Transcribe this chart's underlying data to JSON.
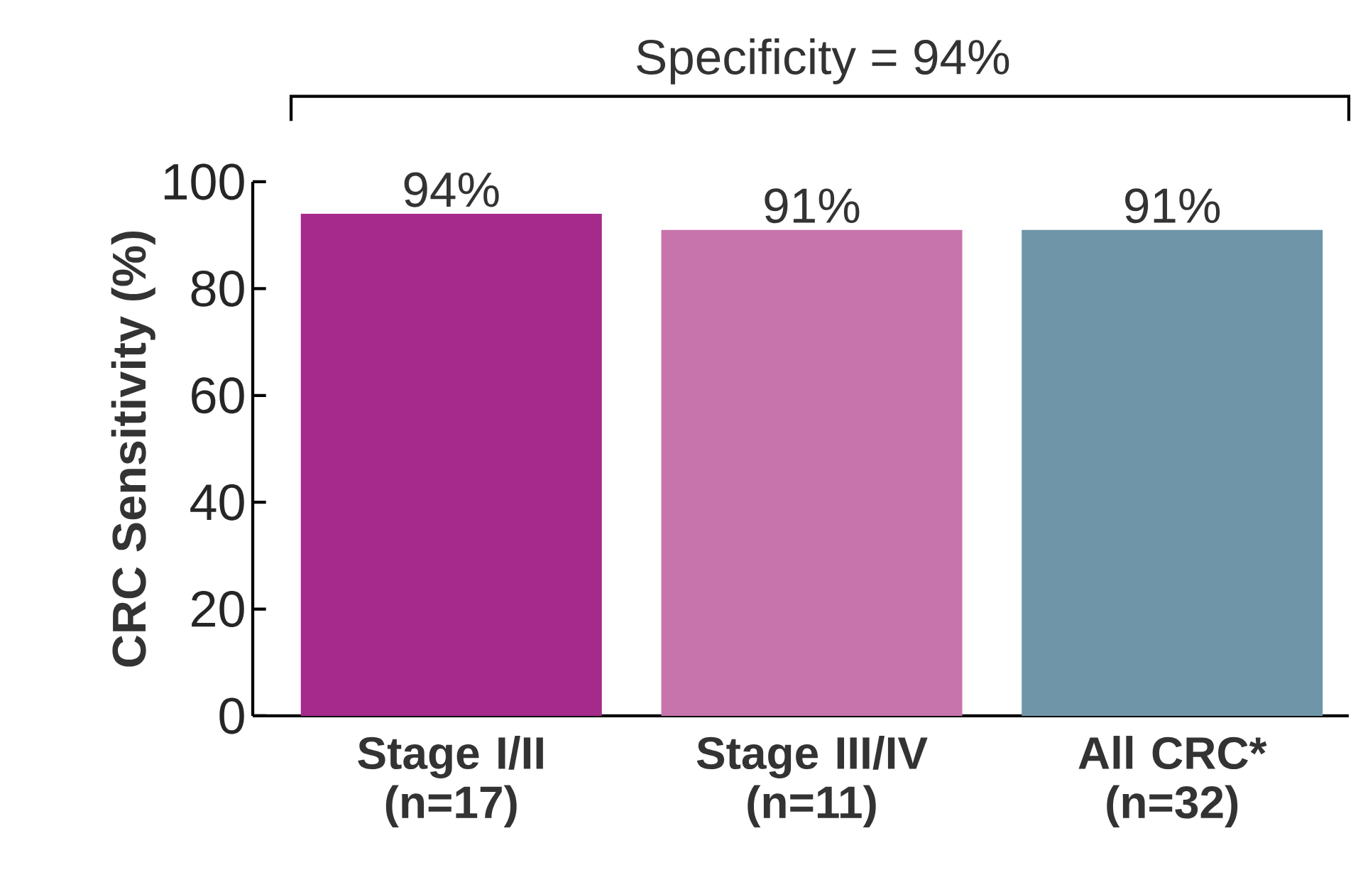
{
  "chart_data": {
    "type": "bar",
    "ylabel": "CRC Sensitivity (%)",
    "categories": [
      "Stage I/II (n=17)",
      "Stage III/IV (n=11)",
      "All  CRC* (n=32)"
    ],
    "values": [
      94,
      91,
      91
    ],
    "colors": [
      "#a52a8c",
      "#c874ac",
      "#6f96a8"
    ],
    "value_labels": [
      "94%",
      "91%",
      "91%"
    ],
    "ylim": [
      0,
      100
    ],
    "yticks": [
      0,
      20,
      40,
      60,
      80,
      100
    ],
    "annotations": [
      "Specificity = 94%"
    ],
    "grid": false
  }
}
